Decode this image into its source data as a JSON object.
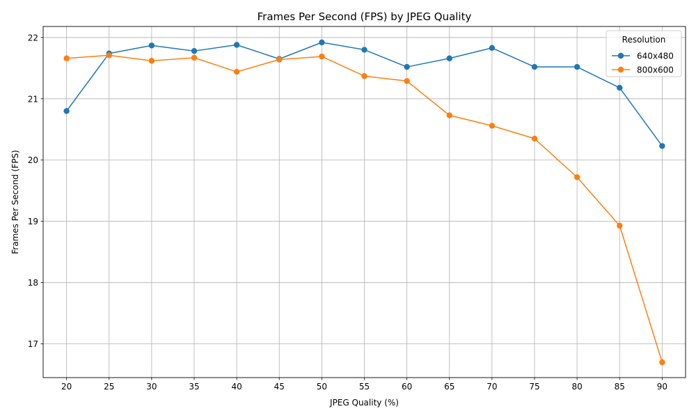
{
  "chart_data": {
    "type": "line",
    "title": "Frames Per Second (FPS) by JPEG Quality",
    "xlabel": "JPEG Quality (%)",
    "ylabel": "Frames Per Second (FPS)",
    "x": [
      20,
      25,
      30,
      35,
      40,
      45,
      50,
      55,
      60,
      65,
      70,
      75,
      80,
      85,
      90
    ],
    "xlim": [
      17.25,
      92.75
    ],
    "ylim": [
      16.45,
      22.18
    ],
    "yticks": [
      17,
      18,
      19,
      20,
      21,
      22
    ],
    "grid": true,
    "legend": {
      "title": "Resolution",
      "placement": "top-right"
    },
    "series": [
      {
        "name": "640x480",
        "color": "#1f77b4",
        "values": [
          20.8,
          21.74,
          21.87,
          21.78,
          21.88,
          21.65,
          21.92,
          21.8,
          21.52,
          21.66,
          21.83,
          21.52,
          21.52,
          21.18,
          20.23
        ]
      },
      {
        "name": "800x600",
        "color": "#ff7f0e",
        "values": [
          21.66,
          21.71,
          21.62,
          21.67,
          21.44,
          21.64,
          21.69,
          21.37,
          21.29,
          20.73,
          20.56,
          20.35,
          19.72,
          18.93,
          16.7
        ]
      }
    ]
  }
}
